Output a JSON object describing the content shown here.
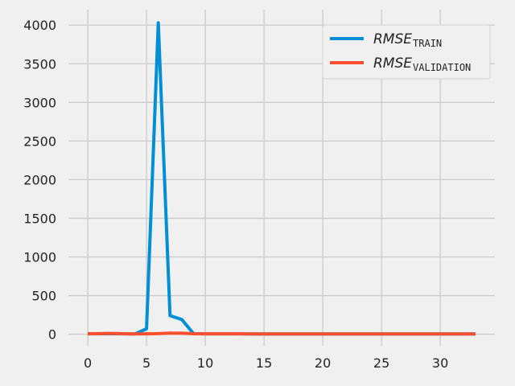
{
  "chart_data": {
    "type": "line",
    "title": "",
    "xlabel": "",
    "ylabel": "",
    "xlim": [
      -1.65,
      34.65
    ],
    "ylim": [
      -150,
      4200
    ],
    "xticks": [
      0,
      5,
      10,
      15,
      20,
      25,
      30
    ],
    "yticks": [
      0,
      500,
      1000,
      1500,
      2000,
      2500,
      3000,
      3500,
      4000
    ],
    "grid": true,
    "legend_position": "top-right",
    "series": [
      {
        "name_base": "RMSE",
        "name_sub": "TRAIN",
        "color": "#008fd5",
        "x": [
          0,
          1,
          2,
          3,
          4,
          5,
          6,
          7,
          8,
          9,
          10,
          11,
          12,
          13,
          14,
          15,
          16,
          17,
          18,
          19,
          20,
          21,
          22,
          23,
          24,
          25,
          26,
          27,
          28,
          29,
          30,
          31,
          32,
          33
        ],
        "values": [
          5,
          6,
          8,
          5,
          3,
          70,
          4030,
          240,
          190,
          8,
          5,
          5,
          5,
          5,
          4,
          4,
          4,
          4,
          4,
          4,
          4,
          4,
          4,
          4,
          4,
          4,
          4,
          4,
          4,
          4,
          4,
          4,
          4,
          4
        ]
      },
      {
        "name_base": "RMSE",
        "name_sub": "VALIDATION",
        "color": "#fc4f30",
        "x": [
          0,
          1,
          2,
          3,
          4,
          5,
          6,
          7,
          8,
          9,
          10,
          11,
          12,
          13,
          14,
          15,
          16,
          17,
          18,
          19,
          20,
          21,
          22,
          23,
          24,
          25,
          26,
          27,
          28,
          29,
          30,
          31,
          32,
          33
        ],
        "values": [
          6,
          8,
          10,
          6,
          4,
          5,
          8,
          14,
          12,
          6,
          5,
          5,
          5,
          5,
          4,
          4,
          4,
          4,
          4,
          4,
          4,
          4,
          4,
          4,
          4,
          4,
          4,
          4,
          4,
          4,
          4,
          4,
          4,
          4
        ]
      }
    ]
  }
}
